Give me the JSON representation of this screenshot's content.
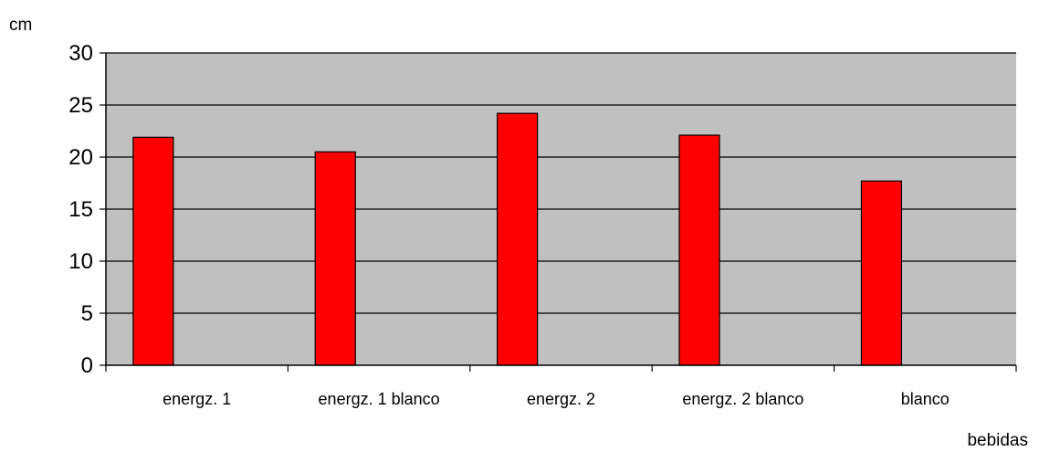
{
  "chart_data": {
    "type": "bar",
    "categories": [
      "energz. 1",
      "energz. 1 blanco",
      "energz. 2",
      "energz. 2 blanco",
      "blanco"
    ],
    "values": [
      21.9,
      20.5,
      24.2,
      22.1,
      17.7
    ],
    "title": "",
    "xlabel": "bebidas",
    "ylabel": "cm",
    "ylim": [
      0,
      30
    ],
    "yticks": [
      0,
      5,
      10,
      15,
      20,
      25,
      30
    ],
    "grid": true,
    "legend": "none",
    "colors": {
      "bar_fill": "#ff0000",
      "bar_stroke": "#000000",
      "plot_background": "#c0c0c0",
      "gridline": "#000000"
    }
  }
}
